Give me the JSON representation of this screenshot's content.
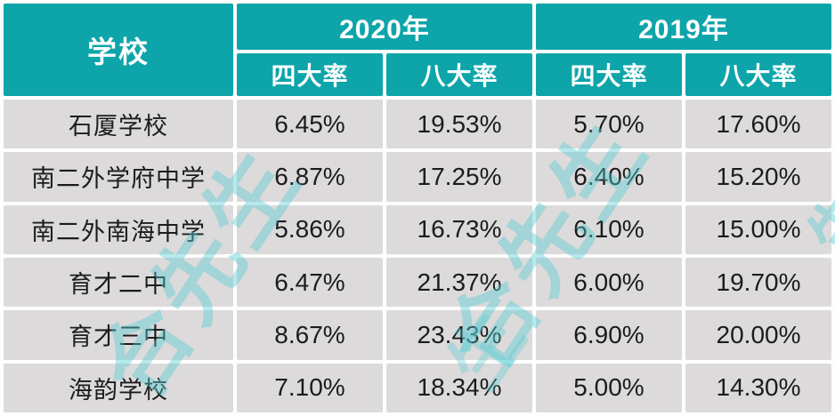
{
  "table": {
    "school_header": "学校",
    "year_groups": [
      {
        "label": "2020年",
        "sub": [
          "四大率",
          "八大率"
        ]
      },
      {
        "label": "2019年",
        "sub": [
          "四大率",
          "八大率"
        ]
      }
    ],
    "rows": [
      {
        "school": "石厦学校",
        "y2020_four": "6.45%",
        "y2020_eight": "19.53%",
        "y2019_four": "5.70%",
        "y2019_eight": "17.60%"
      },
      {
        "school": "南二外学府中学",
        "y2020_four": "6.87%",
        "y2020_eight": "17.25%",
        "y2019_four": "6.40%",
        "y2019_eight": "15.20%"
      },
      {
        "school": "南二外南海中学",
        "y2020_four": "5.86%",
        "y2020_eight": "16.73%",
        "y2019_four": "6.10%",
        "y2019_eight": "15.00%"
      },
      {
        "school": "育才二中",
        "y2020_four": "6.47%",
        "y2020_eight": "21.37%",
        "y2019_four": "6.00%",
        "y2019_eight": "19.70%"
      },
      {
        "school": "育才三中",
        "y2020_four": "8.67%",
        "y2020_eight": "23.43%",
        "y2019_four": "6.90%",
        "y2019_eight": "20.00%"
      },
      {
        "school": "海韵学校",
        "y2020_four": "7.10%",
        "y2020_eight": "18.34%",
        "y2019_four": "5.00%",
        "y2019_eight": "14.30%"
      }
    ]
  },
  "watermark": {
    "text": "合先生",
    "fragment": "生",
    "color": "#54cdd4"
  },
  "colors": {
    "header_teal": "#0da5a9",
    "cell_gray": "#dcdada",
    "header_text": "#ffffff",
    "data_text": "#1c1c1c",
    "gap_white": "#fdfdfd"
  },
  "chart_data": {
    "type": "table",
    "title": "",
    "columns": [
      "学校",
      "2020年 四大率",
      "2020年 八大率",
      "2019年 四大率",
      "2019年 八大率"
    ],
    "rows": [
      [
        "石厦学校",
        "6.45%",
        "19.53%",
        "5.70%",
        "17.60%"
      ],
      [
        "南二外学府中学",
        "6.87%",
        "17.25%",
        "6.40%",
        "15.20%"
      ],
      [
        "南二外南海中学",
        "5.86%",
        "16.73%",
        "6.10%",
        "15.00%"
      ],
      [
        "育才二中",
        "6.47%",
        "21.37%",
        "6.00%",
        "19.70%"
      ],
      [
        "育才三中",
        "8.67%",
        "23.43%",
        "6.90%",
        "20.00%"
      ],
      [
        "海韵学校",
        "7.10%",
        "18.34%",
        "5.00%",
        "14.30%"
      ]
    ]
  }
}
